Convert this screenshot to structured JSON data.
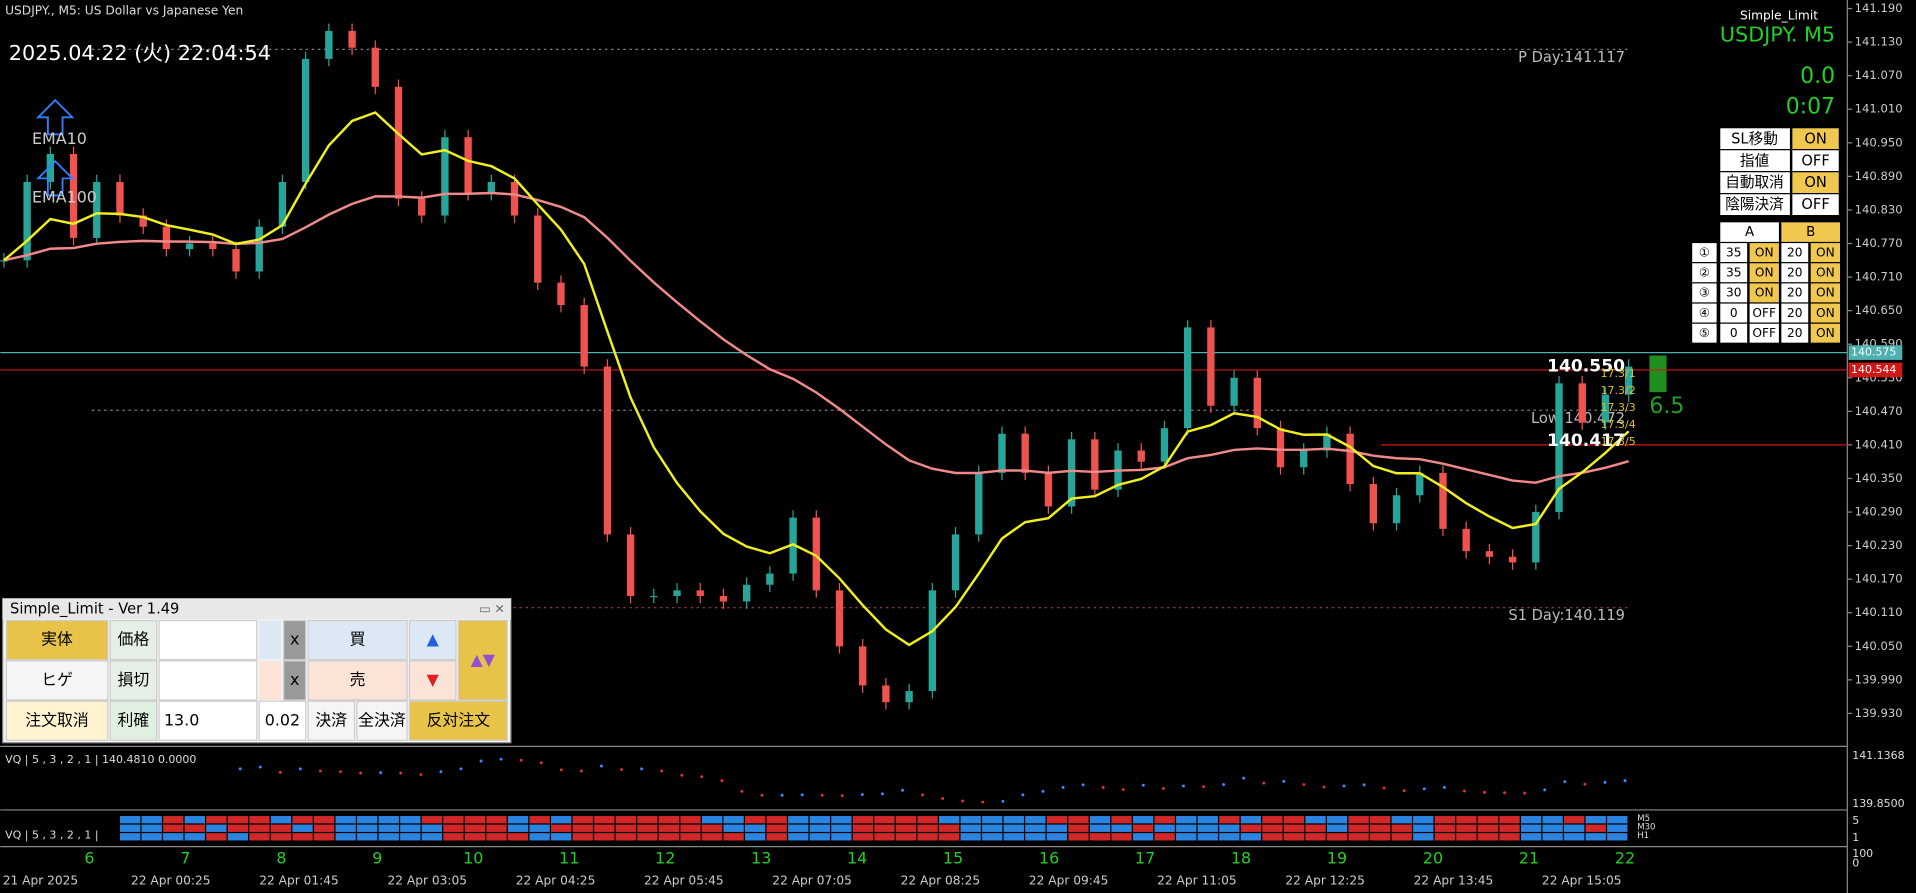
{
  "header": {
    "symbol": "USDJPY., M5: US Dollar vs Japanese Yen",
    "datetime": "2025.04.22 (火) 22:04:54",
    "indicator": "Simple_Limit",
    "pair": "USDJPY.  M5",
    "profit": "0.0",
    "timer": "0:07"
  },
  "chart": {
    "price_ticks": [
      {
        "value": 141.19,
        "label": "141.190"
      },
      {
        "value": 141.13,
        "label": "141.130"
      },
      {
        "value": 141.07,
        "label": "141.070"
      },
      {
        "value": 141.01,
        "label": "141.010"
      },
      {
        "value": 140.95,
        "label": "140.950"
      },
      {
        "value": 140.89,
        "label": "140.890"
      },
      {
        "value": 140.83,
        "label": "140.830"
      },
      {
        "value": 140.77,
        "label": "140.770"
      },
      {
        "value": 140.71,
        "label": "140.710"
      },
      {
        "value": 140.65,
        "label": "140.650"
      },
      {
        "value": 140.59,
        "label": "140.590"
      },
      {
        "value": 140.53,
        "label": "140.530"
      },
      {
        "value": 140.47,
        "label": "140.470"
      },
      {
        "value": 140.41,
        "label": "140.410"
      },
      {
        "value": 140.35,
        "label": "140.350"
      },
      {
        "value": 140.29,
        "label": "140.290"
      },
      {
        "value": 140.23,
        "label": "140.230"
      },
      {
        "value": 140.17,
        "label": "140.170"
      },
      {
        "value": 140.11,
        "label": "140.110"
      },
      {
        "value": 140.05,
        "label": "140.050"
      },
      {
        "value": 139.99,
        "label": "139.990"
      },
      {
        "value": 139.93,
        "label": "139.930"
      }
    ],
    "closes": [
      140.74,
      140.88,
      140.93,
      140.78,
      140.88,
      140.82,
      140.8,
      140.76,
      140.77,
      140.76,
      140.72,
      140.8,
      140.88,
      141.1,
      141.15,
      141.12,
      141.05,
      140.85,
      140.82,
      140.96,
      140.86,
      140.88,
      140.82,
      140.7,
      140.66,
      140.55,
      140.25,
      140.14,
      140.14,
      140.15,
      140.14,
      140.13,
      140.16,
      140.18,
      140.28,
      140.15,
      140.05,
      139.98,
      139.95,
      139.97,
      140.15,
      140.25,
      140.36,
      140.43,
      140.36,
      140.3,
      140.42,
      140.33,
      140.4,
      140.38,
      140.44,
      140.62,
      140.48,
      140.53,
      140.44,
      140.37,
      140.4,
      140.43,
      140.34,
      140.27,
      140.32,
      140.36,
      140.26,
      140.22,
      140.21,
      140.2,
      140.29,
      140.52,
      140.45,
      140.5,
      140.55
    ],
    "current_lines": [
      {
        "value": 140.575,
        "color": "#4fb0b0"
      },
      {
        "value": 140.544,
        "color": "#d01818"
      }
    ],
    "levels": [
      {
        "label": "P Day:141.117",
        "value": 141.117,
        "color": "#808080"
      },
      {
        "label": "S1 Day:140.119",
        "value": 140.119,
        "color": "#a04040"
      },
      {
        "label": "Low 140.472",
        "value": 140.472,
        "color": "#808080"
      },
      {
        "value": 140.41,
        "color": "#d01818"
      }
    ],
    "markers": [
      {
        "value": 140.55,
        "label": "140.550"
      },
      {
        "value": 140.417,
        "label": "140.417"
      }
    ],
    "spread": "6.5",
    "ema_labels": [
      "EMA10",
      "EMA100"
    ],
    "grid_labels": [
      "17.3/1",
      "17.3/2",
      "17.3/3",
      "17.3/4",
      "17.3/5"
    ]
  },
  "settings": [
    [
      "SL移動",
      "ON"
    ],
    [
      "指値",
      "OFF"
    ],
    [
      "自動取消",
      "ON"
    ],
    [
      "陰陽決済",
      "OFF"
    ]
  ],
  "grid_table": {
    "header": [
      "A",
      "B"
    ],
    "rows": [
      [
        "①",
        "35",
        "ON",
        "20",
        "ON"
      ],
      [
        "②",
        "35",
        "ON",
        "20",
        "ON"
      ],
      [
        "③",
        "30",
        "ON",
        "20",
        "ON"
      ],
      [
        "④",
        "0",
        "OFF",
        "20",
        "ON"
      ],
      [
        "⑤",
        "0",
        "OFF",
        "20",
        "ON"
      ]
    ]
  },
  "panel": {
    "title": "Simple_Limit - Ver 1.49",
    "row1": [
      "実体",
      "価格",
      "x",
      "買",
      "▲",
      "▲▼"
    ],
    "row2": [
      "ヒゲ",
      "損切",
      "x",
      "売",
      "▼"
    ],
    "row3": [
      "注文取消",
      "利確",
      "13.0",
      "0.02",
      "決済",
      "全決済",
      "反対注文"
    ]
  },
  "vq": {
    "label1": "VQ | 5 , 3 , 2 , 1 | 140.4810 0.0000",
    "label2": "VQ | 5 , 3 , 2 , 1 |",
    "axis1": [
      "141.1368",
      "139.8500"
    ],
    "axis2": [
      "5",
      "1",
      "100",
      "0"
    ],
    "tf": [
      "M5",
      "M30",
      "H1"
    ]
  },
  "time_axis": {
    "labels": [
      "21 Apr 2025",
      "22 Apr 00:25",
      "22 Apr 01:45",
      "22 Apr 03:05",
      "22 Apr 04:25",
      "22 Apr 05:45",
      "22 Apr 07:05",
      "22 Apr 08:25",
      "22 Apr 09:45",
      "22 Apr 11:05",
      "22 Apr 12:25",
      "22 Apr 13:45",
      "22 Apr 15:05"
    ],
    "hours": [
      "6",
      "7",
      "8",
      "9",
      "10",
      "11",
      "12",
      "13",
      "14",
      "15",
      "16",
      "17",
      "18",
      "19",
      "20",
      "21",
      "22"
    ]
  }
}
